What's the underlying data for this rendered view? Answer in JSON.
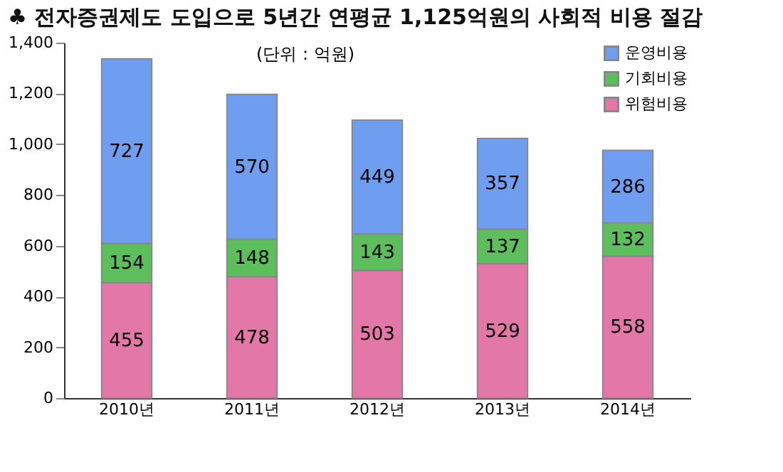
{
  "chart_data": {
    "type": "bar",
    "title": "♣ 전자증권제도 도입으로 5년간 연평균 1,125억원의 사회적 비용 절감",
    "categories": [
      "2010년",
      "2011년",
      "2012년",
      "2013년",
      "2014년"
    ],
    "stacked": true,
    "series": [
      {
        "name": "위험비용",
        "color": "#e377a8",
        "values": [
          455,
          478,
          503,
          529,
          558
        ]
      },
      {
        "name": "기회비용",
        "color": "#5cbf5c",
        "values": [
          154,
          148,
          143,
          137,
          132
        ]
      },
      {
        "name": "운영비용",
        "color": "#6f9ef0",
        "values": [
          727,
          570,
          449,
          357,
          286
        ]
      }
    ],
    "ylim": [
      0,
      1400
    ],
    "yticks": [
      0,
      200,
      400,
      600,
      800,
      {
        "value": 1000,
        "label": "1,000"
      },
      {
        "value": 1200,
        "label": "1,200"
      },
      {
        "value": 1400,
        "label": "1,400"
      }
    ],
    "data_labels": true,
    "grid": false,
    "legend": "top right",
    "annotations": [
      "(단위 : 억원)"
    ]
  }
}
